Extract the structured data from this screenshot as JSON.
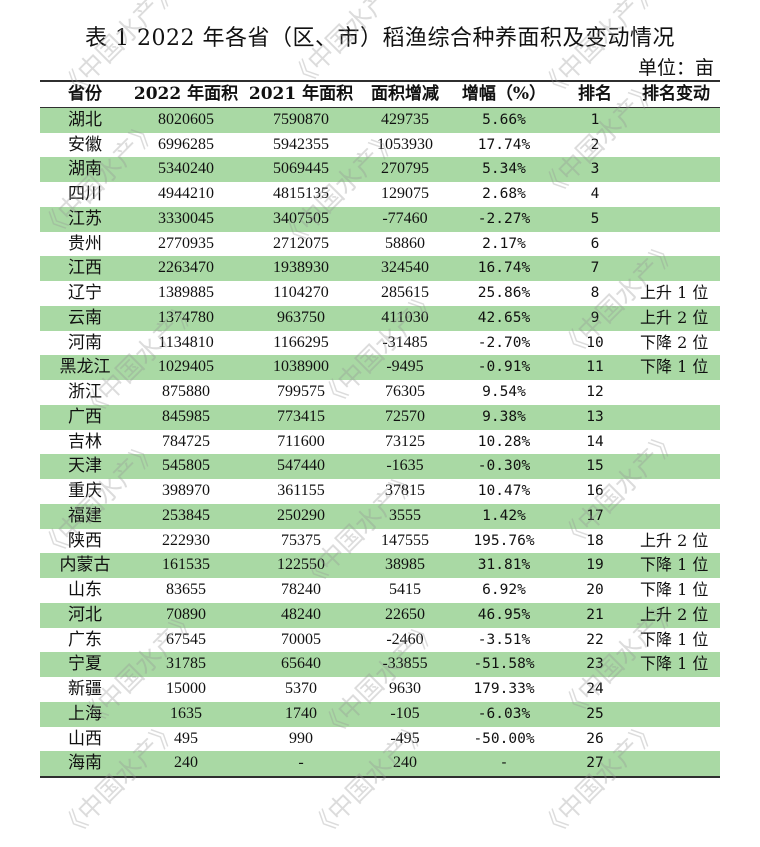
{
  "title": "表 1 2022 年各省（区、市）稻渔综合种养面积及变动情况",
  "unit": "单位：亩",
  "watermark": "《中国水产》",
  "table": {
    "headers": [
      "省份",
      "2022 年面积",
      "2021 年面积",
      "面积增减",
      "增幅（%）",
      "排名",
      "排名变动"
    ],
    "rows": [
      {
        "province": "湖北",
        "area_2022": "8020605",
        "area_2021": "7590870",
        "change": "429735",
        "pct": "5.66%",
        "rank": "1",
        "rank_change": ""
      },
      {
        "province": "安徽",
        "area_2022": "6996285",
        "area_2021": "5942355",
        "change": "1053930",
        "pct": "17.74%",
        "rank": "2",
        "rank_change": ""
      },
      {
        "province": "湖南",
        "area_2022": "5340240",
        "area_2021": "5069445",
        "change": "270795",
        "pct": "5.34%",
        "rank": "3",
        "rank_change": ""
      },
      {
        "province": "四川",
        "area_2022": "4944210",
        "area_2021": "4815135",
        "change": "129075",
        "pct": "2.68%",
        "rank": "4",
        "rank_change": ""
      },
      {
        "province": "江苏",
        "area_2022": "3330045",
        "area_2021": "3407505",
        "change": "-77460",
        "pct": "-2.27%",
        "rank": "5",
        "rank_change": ""
      },
      {
        "province": "贵州",
        "area_2022": "2770935",
        "area_2021": "2712075",
        "change": "58860",
        "pct": "2.17%",
        "rank": "6",
        "rank_change": ""
      },
      {
        "province": "江西",
        "area_2022": "2263470",
        "area_2021": "1938930",
        "change": "324540",
        "pct": "16.74%",
        "rank": "7",
        "rank_change": ""
      },
      {
        "province": "辽宁",
        "area_2022": "1389885",
        "area_2021": "1104270",
        "change": "285615",
        "pct": "25.86%",
        "rank": "8",
        "rank_change": "上升 1 位"
      },
      {
        "province": "云南",
        "area_2022": "1374780",
        "area_2021": "963750",
        "change": "411030",
        "pct": "42.65%",
        "rank": "9",
        "rank_change": "上升 2 位"
      },
      {
        "province": "河南",
        "area_2022": "1134810",
        "area_2021": "1166295",
        "change": "-31485",
        "pct": "-2.70%",
        "rank": "10",
        "rank_change": "下降 2 位"
      },
      {
        "province": "黑龙江",
        "area_2022": "1029405",
        "area_2021": "1038900",
        "change": "-9495",
        "pct": "-0.91%",
        "rank": "11",
        "rank_change": "下降 1 位"
      },
      {
        "province": "浙江",
        "area_2022": "875880",
        "area_2021": "799575",
        "change": "76305",
        "pct": "9.54%",
        "rank": "12",
        "rank_change": ""
      },
      {
        "province": "广西",
        "area_2022": "845985",
        "area_2021": "773415",
        "change": "72570",
        "pct": "9.38%",
        "rank": "13",
        "rank_change": ""
      },
      {
        "province": "吉林",
        "area_2022": "784725",
        "area_2021": "711600",
        "change": "73125",
        "pct": "10.28%",
        "rank": "14",
        "rank_change": ""
      },
      {
        "province": "天津",
        "area_2022": "545805",
        "area_2021": "547440",
        "change": "-1635",
        "pct": "-0.30%",
        "rank": "15",
        "rank_change": ""
      },
      {
        "province": "重庆",
        "area_2022": "398970",
        "area_2021": "361155",
        "change": "37815",
        "pct": "10.47%",
        "rank": "16",
        "rank_change": ""
      },
      {
        "province": "福建",
        "area_2022": "253845",
        "area_2021": "250290",
        "change": "3555",
        "pct": "1.42%",
        "rank": "17",
        "rank_change": ""
      },
      {
        "province": "陕西",
        "area_2022": "222930",
        "area_2021": "75375",
        "change": "147555",
        "pct": "195.76%",
        "rank": "18",
        "rank_change": "上升 2 位"
      },
      {
        "province": "内蒙古",
        "area_2022": "161535",
        "area_2021": "122550",
        "change": "38985",
        "pct": "31.81%",
        "rank": "19",
        "rank_change": "下降 1 位"
      },
      {
        "province": "山东",
        "area_2022": "83655",
        "area_2021": "78240",
        "change": "5415",
        "pct": "6.92%",
        "rank": "20",
        "rank_change": "下降 1 位"
      },
      {
        "province": "河北",
        "area_2022": "70890",
        "area_2021": "48240",
        "change": "22650",
        "pct": "46.95%",
        "rank": "21",
        "rank_change": "上升 2 位"
      },
      {
        "province": "广东",
        "area_2022": "67545",
        "area_2021": "70005",
        "change": "-2460",
        "pct": "-3.51%",
        "rank": "22",
        "rank_change": "下降 1 位"
      },
      {
        "province": "宁夏",
        "area_2022": "31785",
        "area_2021": "65640",
        "change": "-33855",
        "pct": "-51.58%",
        "rank": "23",
        "rank_change": "下降 1 位"
      },
      {
        "province": "新疆",
        "area_2022": "15000",
        "area_2021": "5370",
        "change": "9630",
        "pct": "179.33%",
        "rank": "24",
        "rank_change": ""
      },
      {
        "province": "上海",
        "area_2022": "1635",
        "area_2021": "1740",
        "change": "-105",
        "pct": "-6.03%",
        "rank": "25",
        "rank_change": ""
      },
      {
        "province": "山西",
        "area_2022": "495",
        "area_2021": "990",
        "change": "-495",
        "pct": "-50.00%",
        "rank": "26",
        "rank_change": ""
      },
      {
        "province": "海南",
        "area_2022": "240",
        "area_2021": "-",
        "change": "240",
        "pct": "-",
        "rank": "27",
        "rank_change": ""
      }
    ]
  },
  "colors": {
    "row_highlight": "#a9d9a4",
    "rule": "#2f2f2f",
    "watermark": "#969696"
  }
}
